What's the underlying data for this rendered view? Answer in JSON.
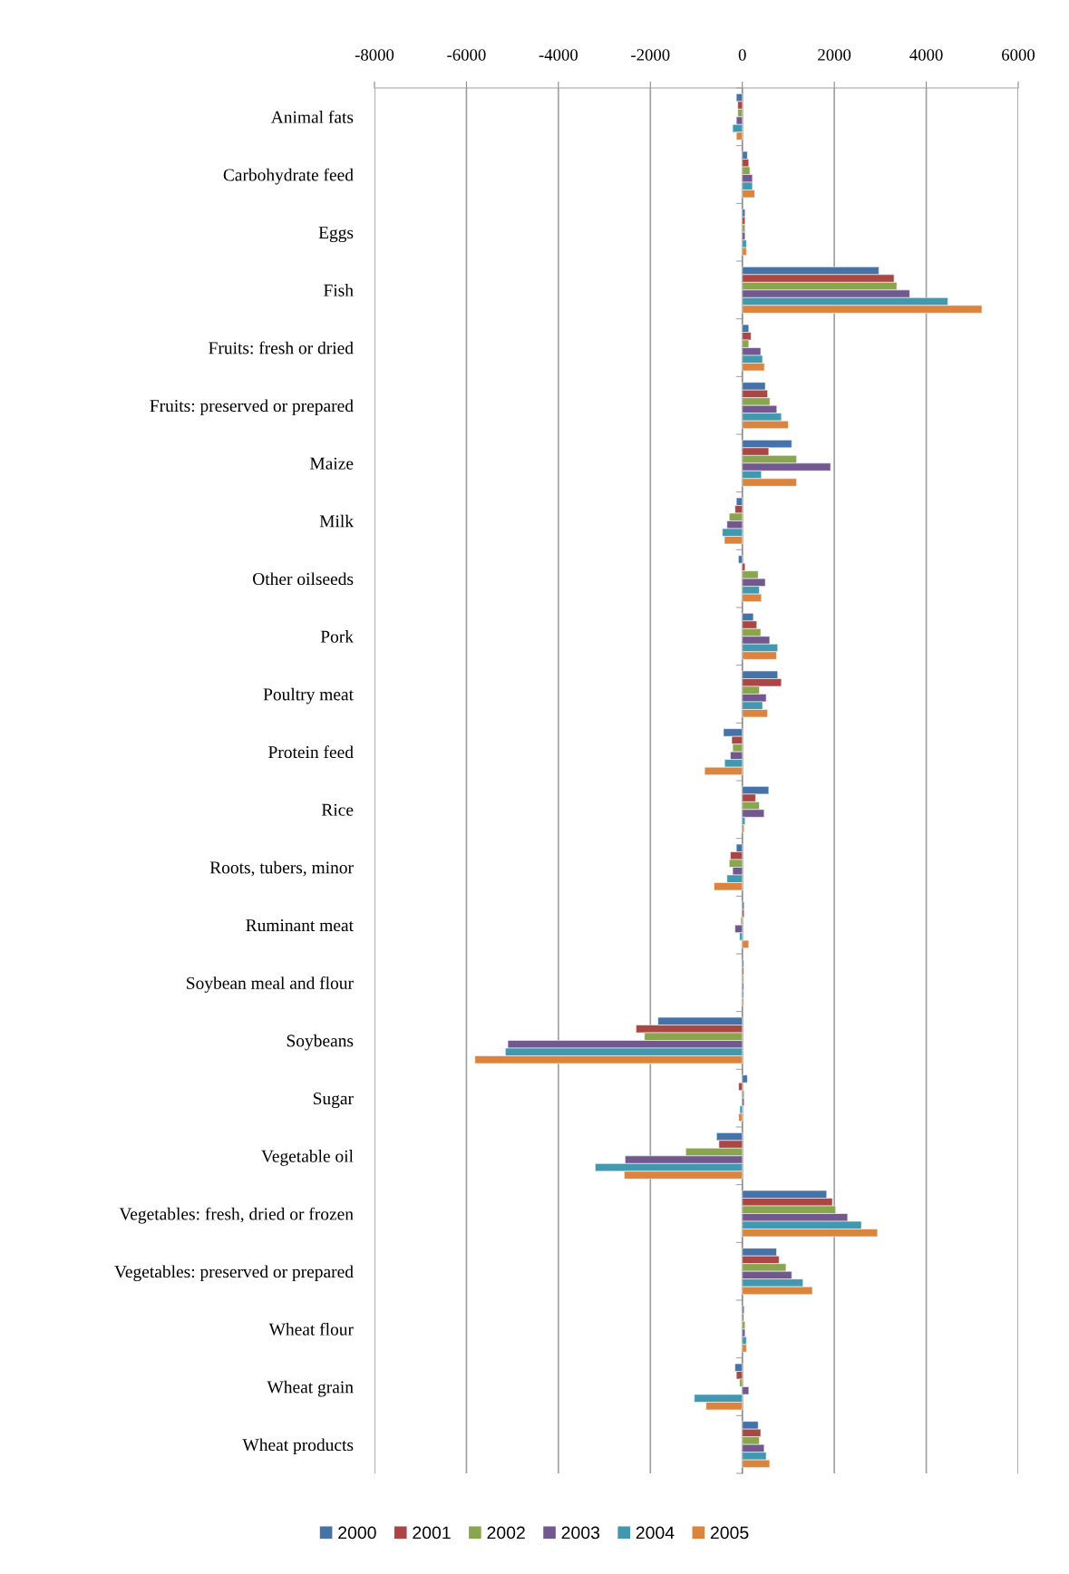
{
  "chart_data": {
    "type": "bar",
    "orientation": "horizontal",
    "categories": [
      "Animal fats",
      "Carbohydrate feed",
      "Eggs",
      "Fish",
      "Fruits: fresh or dried",
      "Fruits: preserved or prepared",
      "Maize",
      "Milk",
      "Other oilseeds",
      "Pork",
      "Poultry meat",
      "Protein feed",
      "Rice",
      "Roots, tubers, minor",
      "Ruminant meat",
      "Soybean meal and flour",
      "Soybeans",
      "Sugar",
      "Vegetable oil",
      "Vegetables: fresh, dried or frozen",
      "Vegetables: preserved or prepared",
      "Wheat flour",
      "Wheat grain",
      "Wheat products"
    ],
    "series": [
      {
        "name": "2000",
        "color": "#4572a7",
        "values": [
          -130,
          110,
          60,
          2970,
          140,
          500,
          1075,
          -130,
          -85,
          240,
          770,
          -410,
          575,
          -130,
          40,
          30,
          -1835,
          110,
          -560,
          1835,
          745,
          40,
          -160,
          345
        ]
      },
      {
        "name": "2001",
        "color": "#aa4643",
        "values": [
          -100,
          140,
          60,
          3300,
          190,
          550,
          575,
          -160,
          60,
          315,
          850,
          -230,
          290,
          -260,
          40,
          30,
          -2310,
          -80,
          -510,
          1960,
          800,
          30,
          -130,
          400
        ]
      },
      {
        "name": "2002",
        "color": "#89a54e",
        "values": [
          -100,
          165,
          60,
          3360,
          140,
          600,
          1180,
          -285,
          345,
          400,
          370,
          -210,
          370,
          -285,
          -35,
          30,
          -2130,
          40,
          -1230,
          2030,
          950,
          60,
          -60,
          370
        ]
      },
      {
        "name": "2003",
        "color": "#71588f",
        "values": [
          -130,
          220,
          60,
          3640,
          400,
          750,
          1920,
          -335,
          500,
          595,
          520,
          -260,
          475,
          -210,
          -160,
          30,
          -5100,
          40,
          -2550,
          2290,
          1075,
          60,
          140,
          475
        ]
      },
      {
        "name": "2004",
        "color": "#4198af",
        "values": [
          -210,
          220,
          90,
          4470,
          440,
          850,
          415,
          -435,
          370,
          770,
          440,
          -385,
          60,
          -335,
          -60,
          30,
          -5155,
          -55,
          -3200,
          2590,
          1320,
          90,
          -1045,
          520
        ]
      },
      {
        "name": "2005",
        "color": "#db843d",
        "values": [
          -130,
          270,
          90,
          5210,
          480,
          1000,
          1180,
          -390,
          415,
          745,
          550,
          -820,
          40,
          -615,
          140,
          30,
          -5815,
          -80,
          -2570,
          2940,
          1525,
          90,
          -790,
          595
        ]
      }
    ],
    "xlim": [
      -8000,
      6000
    ],
    "xticks": [
      -8000,
      -6000,
      -4000,
      -2000,
      0,
      2000,
      4000,
      6000
    ],
    "grid": "x",
    "legend": "bottom"
  }
}
